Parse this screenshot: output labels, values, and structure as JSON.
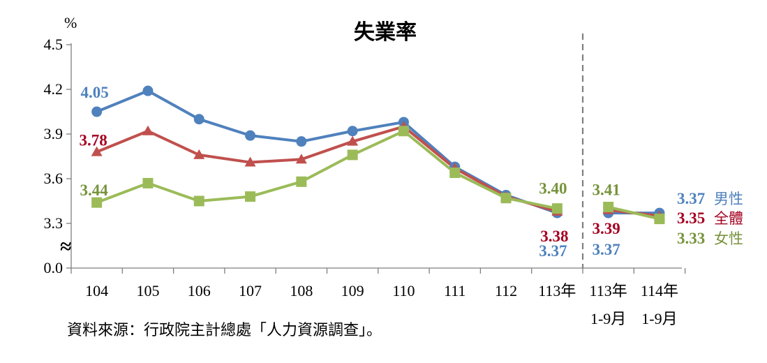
{
  "chart_data": {
    "type": "line",
    "title": "失業率",
    "ylabel": "%",
    "categories": [
      "104",
      "105",
      "106",
      "107",
      "108",
      "109",
      "110",
      "111",
      "112",
      "113年",
      "113年\n1-9月",
      "114年\n1-9月"
    ],
    "yticks": [
      "4.5",
      "4.2",
      "3.9",
      "3.6",
      "3.3",
      "0.0"
    ],
    "ylim": [
      3.0,
      4.5
    ],
    "axis_break": "≈",
    "grid": false,
    "divider": "dashed line between 113年 and 113年 1-9月",
    "series": [
      {
        "name": "男性",
        "color": "#4F81BD",
        "marker": "circle",
        "values": [
          4.05,
          4.19,
          4.0,
          3.89,
          3.85,
          3.92,
          3.98,
          3.68,
          3.49,
          3.37,
          3.37,
          3.37
        ]
      },
      {
        "name": "全體",
        "color": "#C0504D",
        "marker": "triangle",
        "values": [
          3.78,
          3.92,
          3.76,
          3.71,
          3.73,
          3.85,
          3.95,
          3.67,
          3.48,
          3.38,
          3.39,
          3.35
        ]
      },
      {
        "name": "女性",
        "color": "#9BBB59",
        "marker": "square",
        "values": [
          3.44,
          3.57,
          3.45,
          3.48,
          3.58,
          3.76,
          3.92,
          3.64,
          3.47,
          3.4,
          3.41,
          3.33
        ]
      }
    ],
    "data_labels": [
      {
        "series": 0,
        "index": 0,
        "text": "4.05",
        "color": "#4F81BD"
      },
      {
        "series": 1,
        "index": 0,
        "text": "3.78",
        "color": "#A50021"
      },
      {
        "series": 2,
        "index": 0,
        "text": "3.44",
        "color": "#77933C"
      },
      {
        "series": 2,
        "index": 9,
        "text": "3.40",
        "color": "#77933C"
      },
      {
        "series": 1,
        "index": 9,
        "text": "3.38",
        "color": "#A50021"
      },
      {
        "series": 0,
        "index": 9,
        "text": "3.37",
        "color": "#4F81BD"
      },
      {
        "series": 2,
        "index": 10,
        "text": "3.41",
        "color": "#77933C"
      },
      {
        "series": 1,
        "index": 10,
        "text": "3.39",
        "color": "#A50021"
      },
      {
        "series": 0,
        "index": 10,
        "text": "3.37",
        "color": "#4F81BD"
      }
    ],
    "legend_labels": [
      {
        "value": "3.37",
        "name": "男性",
        "color": "#4F81BD"
      },
      {
        "value": "3.35",
        "name": "全體",
        "color": "#A50021"
      },
      {
        "value": "3.33",
        "name": "女性",
        "color": "#77933C"
      }
    ],
    "source": "資料來源：行政院主計總處「人力資源調查」。"
  }
}
